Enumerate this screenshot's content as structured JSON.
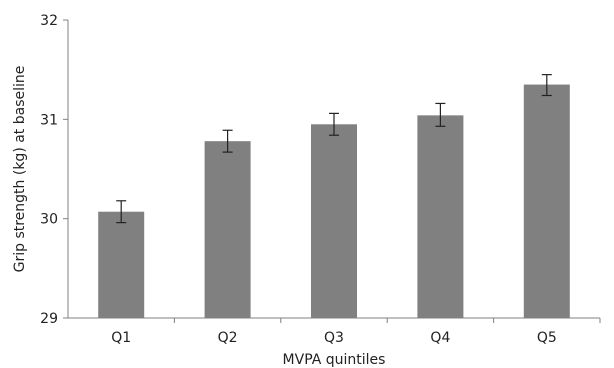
{
  "chart_data": {
    "type": "bar",
    "title": "",
    "xlabel": "MVPA quintiles",
    "ylabel": "Grip strength (kg) at baseline",
    "categories": [
      "Q1",
      "Q2",
      "Q3",
      "Q4",
      "Q5"
    ],
    "values": [
      30.07,
      30.78,
      30.95,
      31.04,
      31.35
    ],
    "error_low": [
      29.96,
      30.67,
      30.84,
      30.93,
      31.24
    ],
    "error_high": [
      30.18,
      30.89,
      31.06,
      31.16,
      31.45
    ],
    "ylim": [
      29,
      32
    ],
    "yticks": [
      29,
      30,
      31,
      32
    ],
    "grid": false,
    "legend": "none",
    "bar_color": "#808080",
    "error_bar_color": "#222222",
    "axis_color": "#808080"
  }
}
